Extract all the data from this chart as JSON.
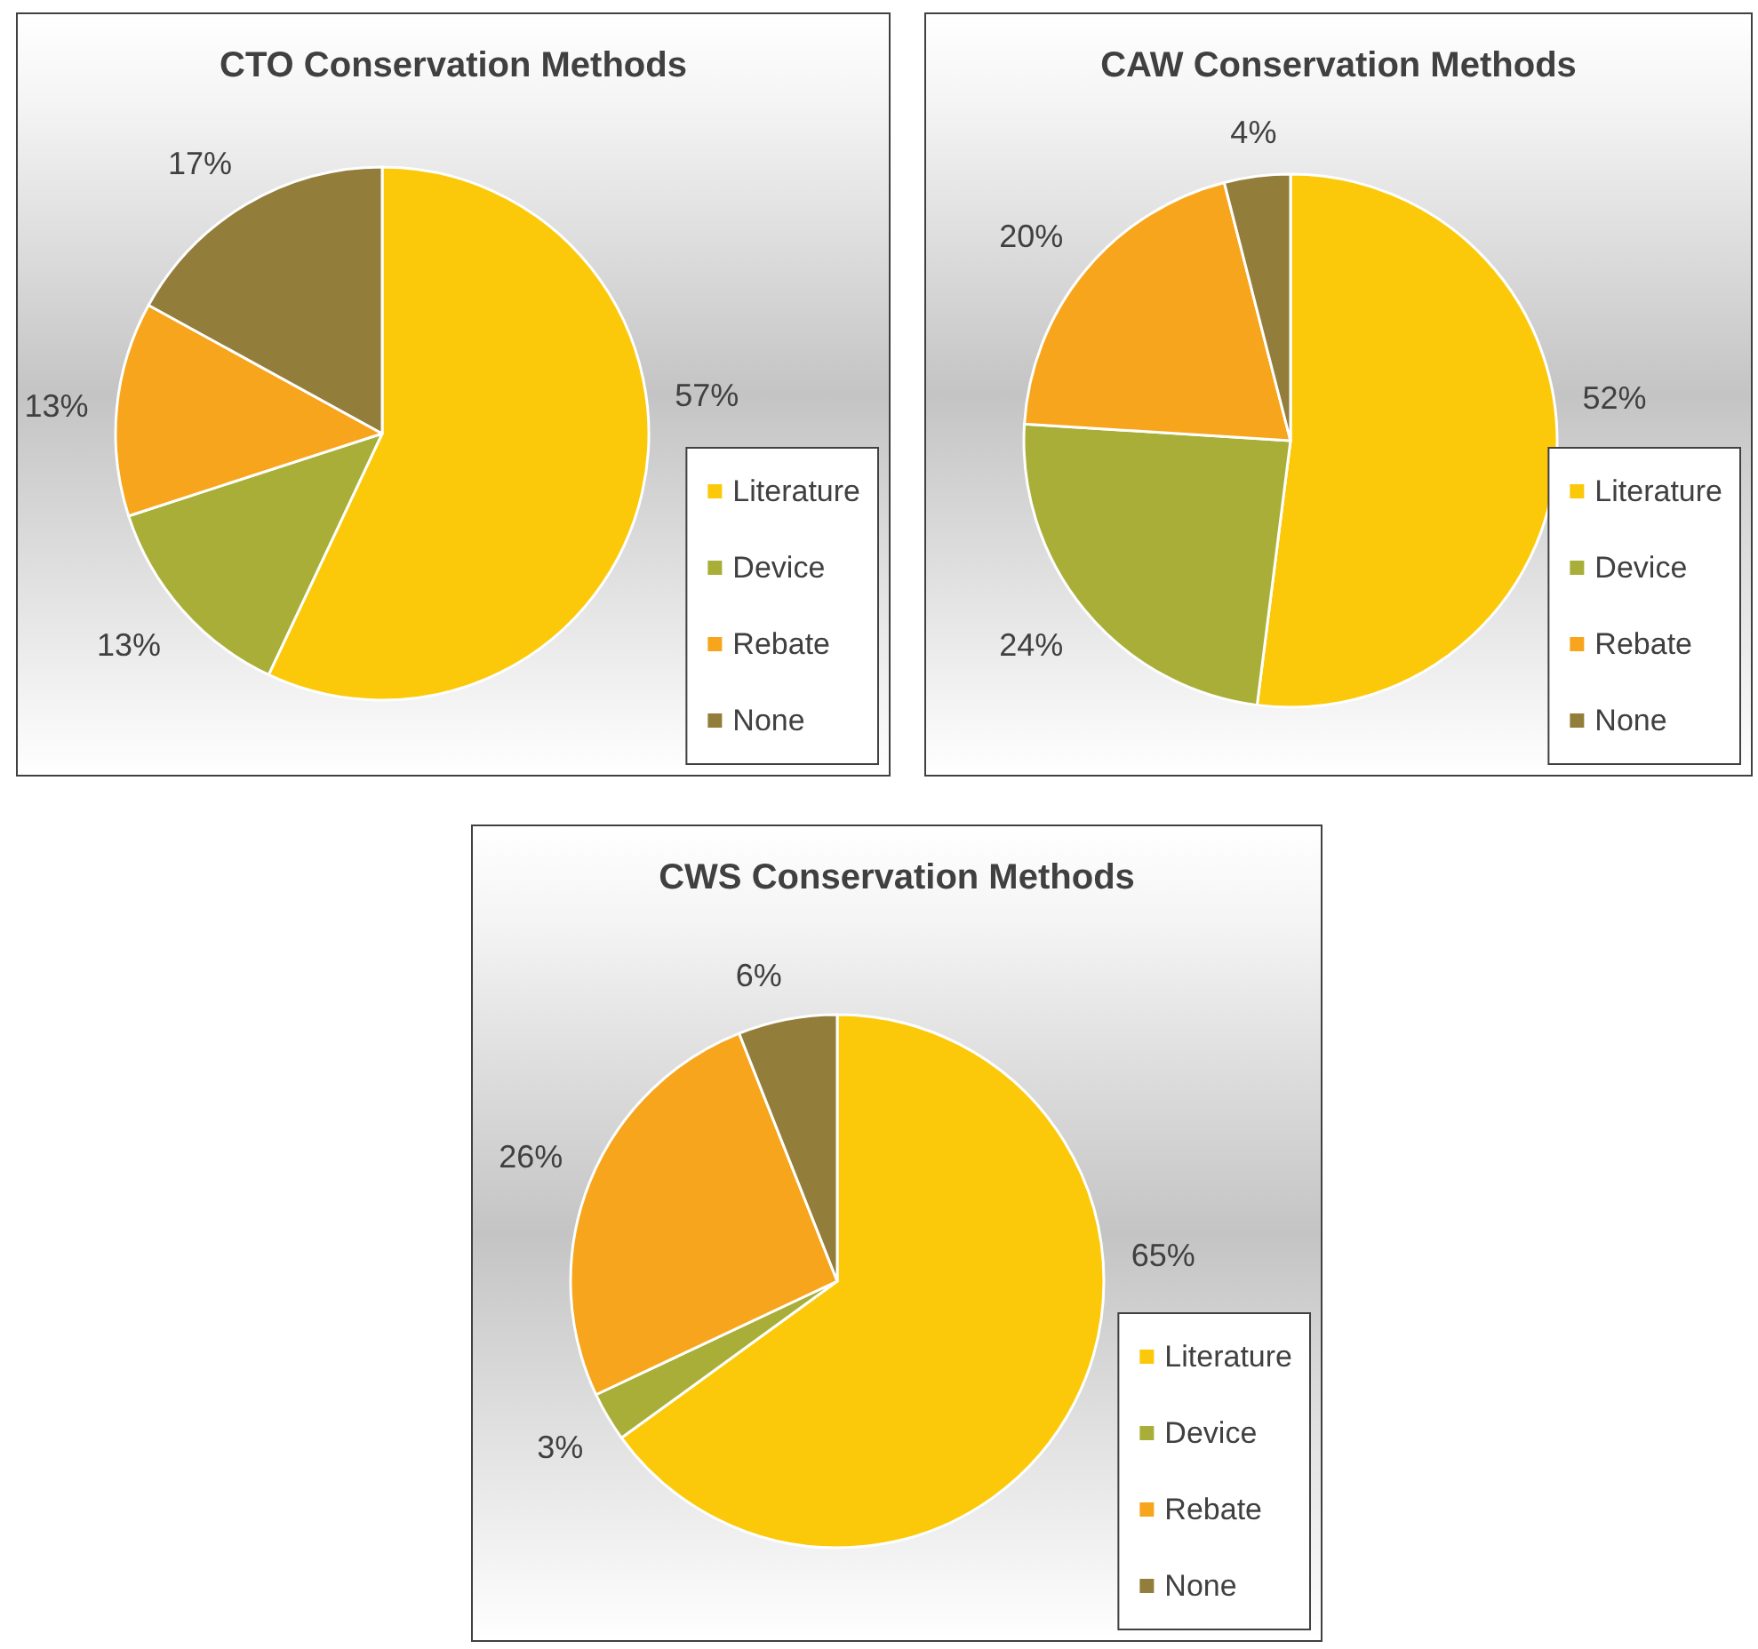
{
  "chart_data": [
    {
      "type": "pie",
      "title": "CTO Conservation Methods",
      "categories": [
        "Literature",
        "Device",
        "Rebate",
        "None"
      ],
      "values": [
        57,
        13,
        13,
        17
      ],
      "value_labels": [
        "57%",
        "13%",
        "13%",
        "17%"
      ],
      "colors": [
        "#fbc90a",
        "#a8ae37",
        "#f7a51d",
        "#937d3a"
      ],
      "legend": "bottom right"
    },
    {
      "type": "pie",
      "title": "CAW Conservation Methods",
      "categories": [
        "Literature",
        "Device",
        "Rebate",
        "None"
      ],
      "values": [
        52,
        24,
        20,
        4
      ],
      "value_labels": [
        "52%",
        "24%",
        "20%",
        "4%"
      ],
      "colors": [
        "#fbc90a",
        "#a8ae37",
        "#f7a51d",
        "#937d3a"
      ],
      "legend": "bottom right"
    },
    {
      "type": "pie",
      "title": "CWS Conservation Methods",
      "categories": [
        "Literature",
        "Device",
        "Rebate",
        "None"
      ],
      "values": [
        65,
        3,
        26,
        6
      ],
      "value_labels": [
        "65%",
        "3%",
        "26%",
        "6%"
      ],
      "colors": [
        "#fbc90a",
        "#a8ae37",
        "#f7a51d",
        "#937d3a"
      ],
      "legend": "bottom right"
    }
  ]
}
